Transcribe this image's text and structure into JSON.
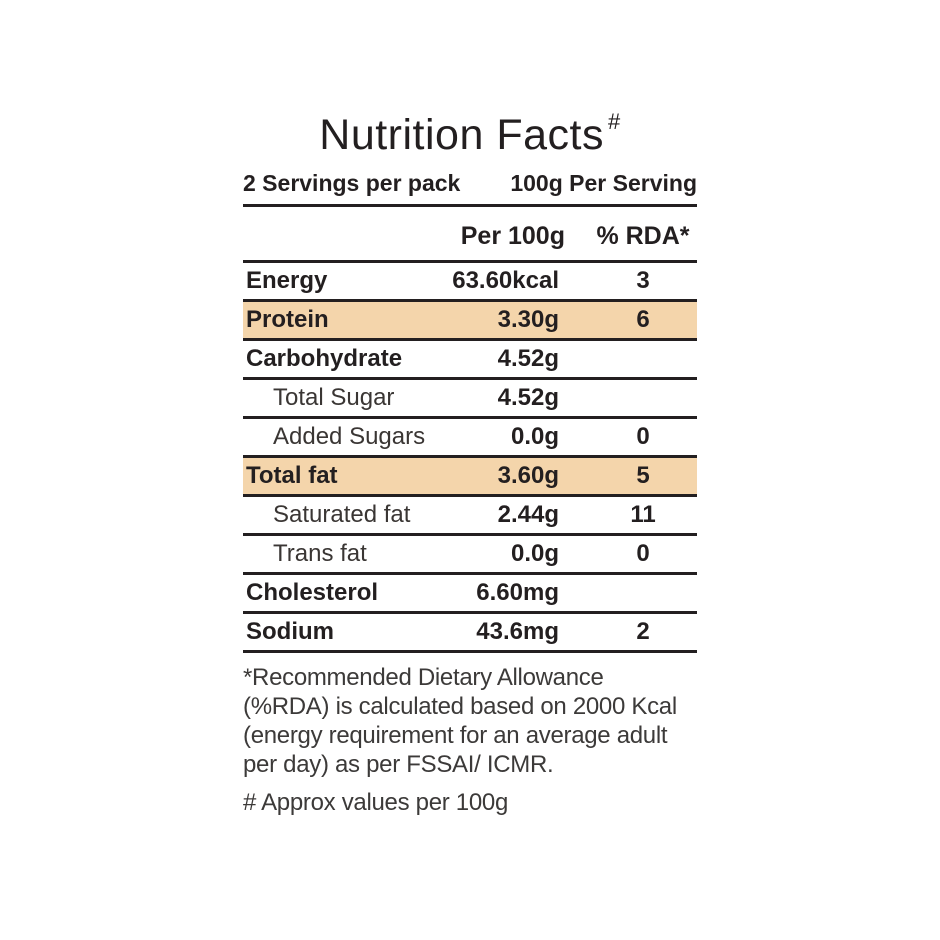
{
  "label": {
    "title": "Nutrition Facts",
    "title_superscript": "#",
    "serving_info": {
      "servings_per_pack": "2 Servings per pack",
      "per_serving": "100g Per Serving"
    },
    "header": {
      "value_col": "Per 100g",
      "rda_col": "% RDA*"
    },
    "rows": [
      {
        "label": "Energy",
        "value": "63.60kcal",
        "rda": "3",
        "indent": false,
        "highlight": false
      },
      {
        "label": "Protein",
        "value": "3.30g",
        "rda": "6",
        "indent": false,
        "highlight": true
      },
      {
        "label": "Carbohydrate",
        "value": "4.52g",
        "rda": "",
        "indent": false,
        "highlight": false
      },
      {
        "label": "Total Sugar",
        "value": "4.52g",
        "rda": "",
        "indent": true,
        "highlight": false
      },
      {
        "label": "Added Sugars",
        "value": "0.0g",
        "rda": "0",
        "indent": true,
        "highlight": false
      },
      {
        "label": "Total fat",
        "value": "3.60g",
        "rda": "5",
        "indent": false,
        "highlight": true
      },
      {
        "label": "Saturated fat",
        "value": "2.44g",
        "rda": "11",
        "indent": true,
        "highlight": false
      },
      {
        "label": "Trans fat",
        "value": "0.0g",
        "rda": "0",
        "indent": true,
        "highlight": false
      },
      {
        "label": "Cholesterol",
        "value": "6.60mg",
        "rda": "",
        "indent": false,
        "highlight": false
      },
      {
        "label": "Sodium",
        "value": "43.6mg",
        "rda": "2",
        "indent": false,
        "highlight": false
      }
    ],
    "footnotes": {
      "rda_note_lines": [
        "*Recommended Dietary Allowance",
        "(%RDA) is calculated based on 2000 Kcal",
        "(energy requirement for an average adult",
        "per day) as per FSSAI/ ICMR."
      ],
      "approx_note": "# Approx values per 100g"
    },
    "colors": {
      "highlight": "#f4d5ab",
      "text": "#231f20",
      "rule": "#231f20"
    }
  }
}
